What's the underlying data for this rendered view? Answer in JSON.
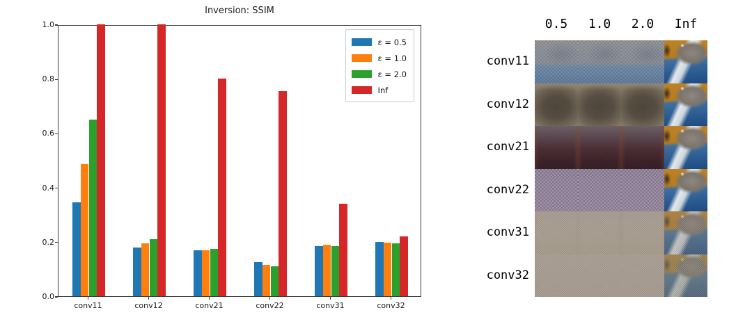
{
  "chart_data": {
    "type": "bar",
    "title": "Inversion: SSIM",
    "categories": [
      "conv11",
      "conv12",
      "conv21",
      "conv22",
      "conv31",
      "conv32"
    ],
    "series": [
      {
        "name": "ε = 0.5",
        "color": "#1f77b4",
        "values": [
          0.345,
          0.18,
          0.17,
          0.125,
          0.185,
          0.2
        ]
      },
      {
        "name": "ε = 1.0",
        "color": "#ff7f0e",
        "values": [
          0.485,
          0.195,
          0.17,
          0.115,
          0.19,
          0.198
        ]
      },
      {
        "name": "ε = 2.0",
        "color": "#2ca02c",
        "values": [
          0.65,
          0.21,
          0.175,
          0.11,
          0.185,
          0.195
        ]
      },
      {
        "name": "Inf",
        "color": "#d62728",
        "values": [
          1.0,
          1.0,
          0.8,
          0.755,
          0.34,
          0.22
        ]
      }
    ],
    "xlabel": "",
    "ylabel": "",
    "ylim": [
      0.0,
      1.0
    ],
    "ytick_labels": [
      "0.0",
      "0.2",
      "0.4",
      "0.6",
      "0.8",
      "1.0"
    ],
    "legend_position": "upper right",
    "grid": false
  },
  "image_grid": {
    "col_headers": [
      "0.5",
      "1.0",
      "2.0",
      "Inf"
    ],
    "rows": [
      {
        "label": "conv11",
        "recon_texture": "conv11",
        "inf_texture": "cat-clear"
      },
      {
        "label": "conv12",
        "recon_texture": "conv12",
        "inf_texture": "cat-clear"
      },
      {
        "label": "conv21",
        "recon_texture": "conv21",
        "inf_texture": "cat-clear"
      },
      {
        "label": "conv22",
        "recon_texture": "conv22",
        "inf_texture": "cat-clear"
      },
      {
        "label": "conv31",
        "recon_texture": "conv31",
        "inf_texture": "cat-noisy"
      },
      {
        "label": "conv32",
        "recon_texture": "conv32",
        "inf_texture": "cat-noisiest"
      }
    ]
  }
}
